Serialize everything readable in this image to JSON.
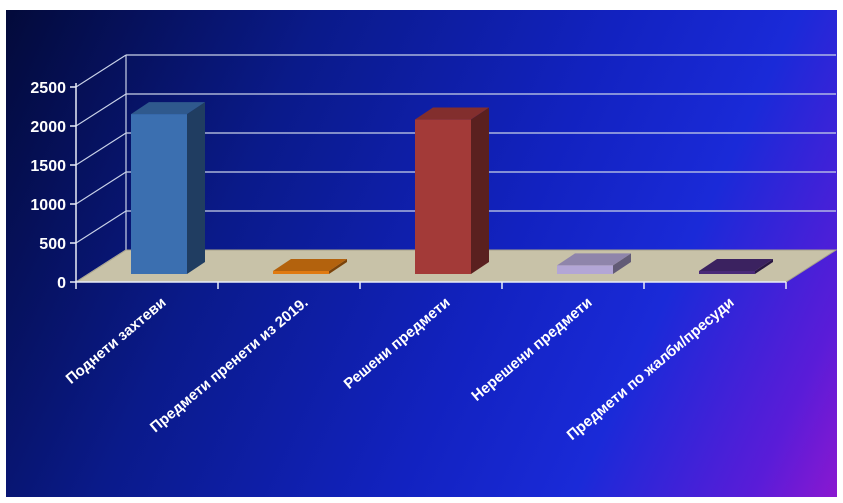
{
  "chart_data": {
    "type": "bar",
    "title": "",
    "xlabel": "",
    "ylabel": "",
    "ylim": [
      0,
      2500
    ],
    "yticks": [
      0,
      500,
      1000,
      1500,
      2000,
      2500
    ],
    "grid": true,
    "categories": [
      "Поднети захтеви",
      "Предмети пренети из 2019.",
      "Решени предмети",
      "Нерешени предмети",
      "Предмети по жалби/пресуди"
    ],
    "values": [
      2050,
      30,
      1980,
      110,
      20
    ],
    "colors": [
      "#3b6fb0",
      "#e07a10",
      "#a33a38",
      "#b3a6d6",
      "#4a2a78"
    ]
  },
  "colors": {
    "floor": "#c8c2a8",
    "grid": "#c9d2e8"
  }
}
